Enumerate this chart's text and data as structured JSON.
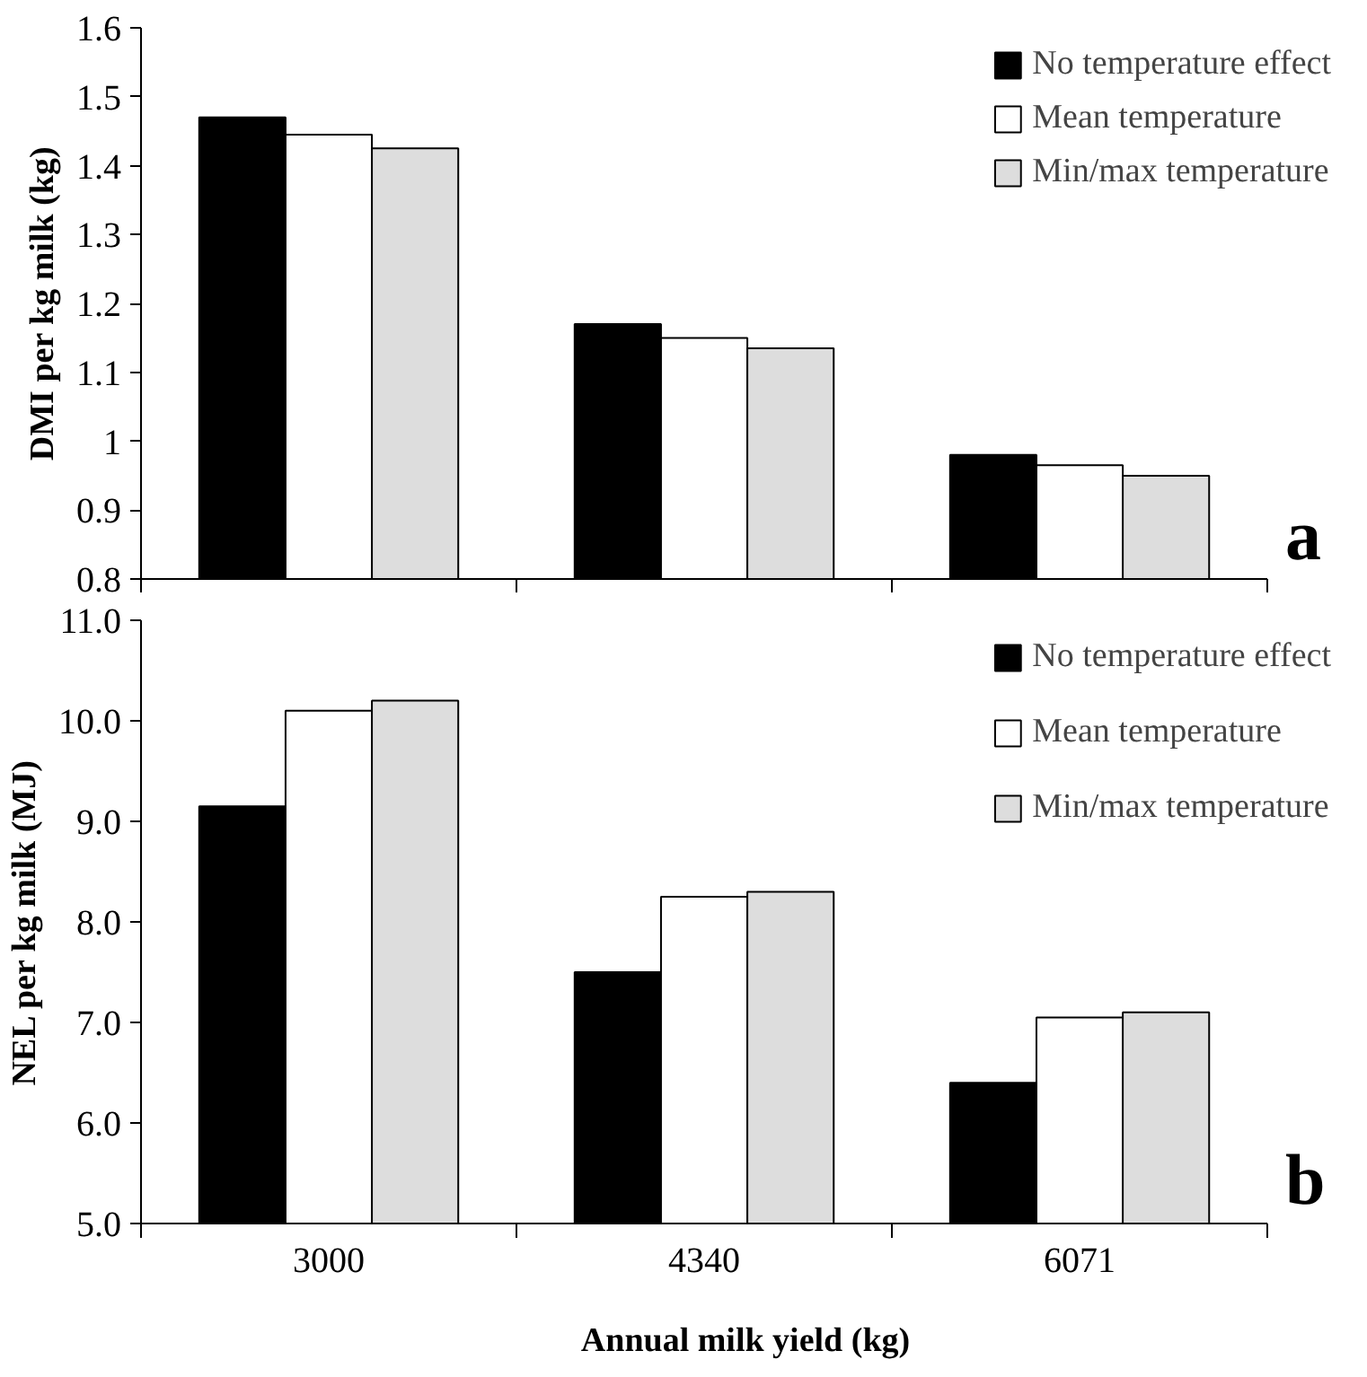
{
  "chart_data": [
    {
      "type": "bar",
      "ylabel": "DMI per kg milk (kg)",
      "categories": [
        "3000",
        "4340",
        "6071"
      ],
      "tick_labels": "y",
      "annotations": [
        "a"
      ],
      "ylim": [
        0.8,
        1.6
      ],
      "yticks": [
        0.8,
        0.9,
        1,
        1.1,
        1.2,
        1.3,
        1.4,
        1.5,
        1.6
      ],
      "grid": false,
      "legend": "top right",
      "series": [
        {
          "name": "No temperature effect",
          "color": "#000000",
          "values": [
            1.47,
            1.17,
            0.98
          ]
        },
        {
          "name": "Mean temperature",
          "color": "#ffffff",
          "values": [
            1.445,
            1.15,
            0.965
          ]
        },
        {
          "name": "Min/max temperature",
          "color": "#dddddd",
          "values": [
            1.425,
            1.135,
            0.95
          ]
        }
      ]
    },
    {
      "type": "bar",
      "ylabel": "NEL per kg milk (MJ)",
      "xlabel": "Annual milk yield (kg)",
      "categories": [
        "3000",
        "4340",
        "6071"
      ],
      "annotations": [
        "b"
      ],
      "ylim": [
        5,
        11
      ],
      "yticks": [
        {
          "value": 5,
          "label": "5.0"
        },
        {
          "value": 6,
          "label": "6.0"
        },
        {
          "value": 7,
          "label": "7.0"
        },
        {
          "value": 8,
          "label": "8.0"
        },
        {
          "value": 9,
          "label": "9.0"
        },
        {
          "value": 10,
          "label": "10.0"
        },
        {
          "value": 11,
          "label": "11.0"
        }
      ],
      "grid": false,
      "legend": "top right",
      "series": [
        {
          "name": "No temperature effect",
          "color": "#000000",
          "values": [
            9.15,
            7.5,
            6.4
          ]
        },
        {
          "name": "Mean temperature",
          "color": "#ffffff",
          "values": [
            10.1,
            8.25,
            7.05
          ]
        },
        {
          "name": "Min/max temperature",
          "color": "#dddddd",
          "values": [
            10.2,
            8.3,
            7.1
          ]
        }
      ]
    }
  ]
}
